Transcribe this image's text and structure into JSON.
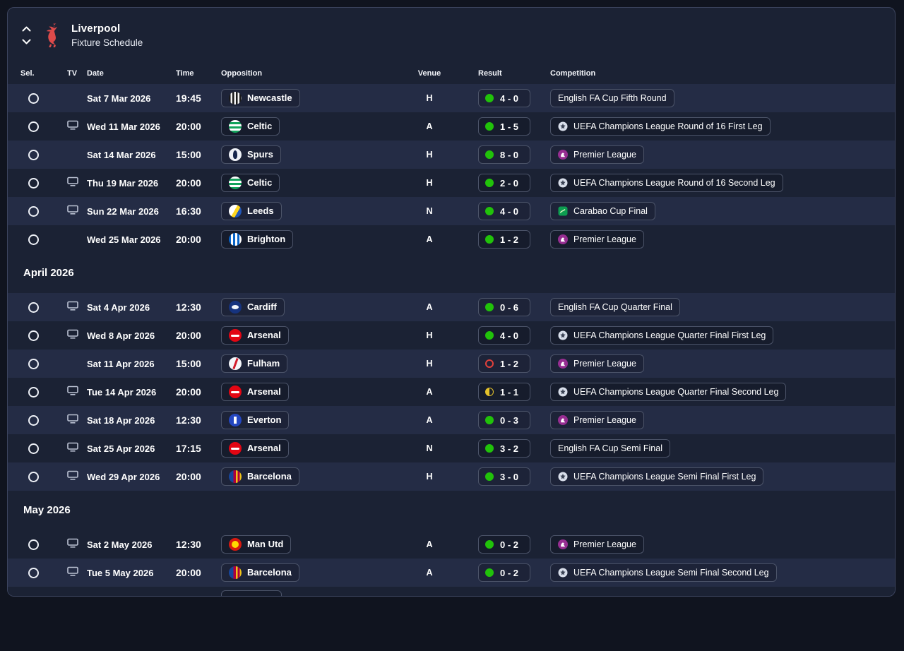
{
  "header": {
    "team_name": "Liverpool",
    "view_title": "Fixture Schedule"
  },
  "table": {
    "columns": {
      "sel": "Sel.",
      "tv": "TV",
      "date": "Date",
      "time": "Time",
      "opposition": "Opposition",
      "venue": "Venue",
      "result": "Result",
      "competition": "Competition"
    },
    "sections": [
      {
        "title": "",
        "rows": [
          {
            "tv": false,
            "date": "Sat 7 Mar 2026",
            "time": "19:45",
            "opposition": "Newcastle",
            "badge": "newcastle",
            "venue": "H",
            "result": "4 - 0",
            "outcome": "win",
            "competition": "English FA Cup Fifth Round",
            "comp_icon": "none"
          },
          {
            "tv": true,
            "date": "Wed 11 Mar 2026",
            "time": "20:00",
            "opposition": "Celtic",
            "badge": "celtic",
            "venue": "A",
            "result": "1 - 5",
            "outcome": "win",
            "competition": "UEFA Champions League Round of 16 First Leg",
            "comp_icon": "ucl"
          },
          {
            "tv": false,
            "date": "Sat 14 Mar 2026",
            "time": "15:00",
            "opposition": "Spurs",
            "badge": "spurs",
            "venue": "H",
            "result": "8 - 0",
            "outcome": "win",
            "competition": "Premier League",
            "comp_icon": "premier"
          },
          {
            "tv": true,
            "date": "Thu 19 Mar 2026",
            "time": "20:00",
            "opposition": "Celtic",
            "badge": "celtic",
            "venue": "H",
            "result": "2 - 0",
            "outcome": "win",
            "competition": "UEFA Champions League Round of 16 Second Leg",
            "comp_icon": "ucl"
          },
          {
            "tv": true,
            "date": "Sun 22 Mar 2026",
            "time": "16:30",
            "opposition": "Leeds",
            "badge": "leeds",
            "venue": "N",
            "result": "4 - 0",
            "outcome": "win",
            "competition": "Carabao Cup Final",
            "comp_icon": "carabao"
          },
          {
            "tv": false,
            "date": "Wed 25 Mar 2026",
            "time": "20:00",
            "opposition": "Brighton",
            "badge": "brighton",
            "venue": "A",
            "result": "1 - 2",
            "outcome": "win",
            "competition": "Premier League",
            "comp_icon": "premier"
          }
        ]
      },
      {
        "title": "April 2026",
        "rows": [
          {
            "tv": true,
            "date": "Sat 4 Apr 2026",
            "time": "12:30",
            "opposition": "Cardiff",
            "badge": "cardiff",
            "venue": "A",
            "result": "0 - 6",
            "outcome": "win",
            "competition": "English FA Cup Quarter Final",
            "comp_icon": "none"
          },
          {
            "tv": true,
            "date": "Wed 8 Apr 2026",
            "time": "20:00",
            "opposition": "Arsenal",
            "badge": "arsenal",
            "venue": "H",
            "result": "4 - 0",
            "outcome": "win",
            "competition": "UEFA Champions League Quarter Final First Leg",
            "comp_icon": "ucl"
          },
          {
            "tv": false,
            "date": "Sat 11 Apr 2026",
            "time": "15:00",
            "opposition": "Fulham",
            "badge": "fulham",
            "venue": "H",
            "result": "1 - 2",
            "outcome": "loss",
            "competition": "Premier League",
            "comp_icon": "premier"
          },
          {
            "tv": true,
            "date": "Tue 14 Apr 2026",
            "time": "20:00",
            "opposition": "Arsenal",
            "badge": "arsenal",
            "venue": "A",
            "result": "1 - 1",
            "outcome": "draw",
            "competition": "UEFA Champions League Quarter Final Second Leg",
            "comp_icon": "ucl"
          },
          {
            "tv": true,
            "date": "Sat 18 Apr 2026",
            "time": "12:30",
            "opposition": "Everton",
            "badge": "everton",
            "venue": "A",
            "result": "0 - 3",
            "outcome": "win",
            "competition": "Premier League",
            "comp_icon": "premier"
          },
          {
            "tv": true,
            "date": "Sat 25 Apr 2026",
            "time": "17:15",
            "opposition": "Arsenal",
            "badge": "arsenal",
            "venue": "N",
            "result": "3 - 2",
            "outcome": "win",
            "competition": "English FA Cup Semi Final",
            "comp_icon": "none"
          },
          {
            "tv": true,
            "date": "Wed 29 Apr 2026",
            "time": "20:00",
            "opposition": "Barcelona",
            "badge": "barcelona",
            "venue": "H",
            "result": "3 - 0",
            "outcome": "win",
            "competition": "UEFA Champions League Semi Final First Leg",
            "comp_icon": "ucl"
          }
        ]
      },
      {
        "title": "May 2026",
        "rows": [
          {
            "tv": true,
            "date": "Sat 2 May 2026",
            "time": "12:30",
            "opposition": "Man Utd",
            "badge": "manutd",
            "venue": "A",
            "result": "0 - 2",
            "outcome": "win",
            "competition": "Premier League",
            "comp_icon": "premier"
          },
          {
            "tv": true,
            "date": "Tue 5 May 2026",
            "time": "20:00",
            "opposition": "Barcelona",
            "badge": "barcelona",
            "venue": "A",
            "result": "0 - 2",
            "outcome": "win",
            "competition": "UEFA Champions League Semi Final Second Leg",
            "comp_icon": "ucl"
          }
        ]
      }
    ]
  },
  "status_colors": {
    "win": "#21c20a",
    "loss": "#e2413b",
    "draw": "#e5c22a"
  },
  "theme": {
    "crest_red": "#dc4a4a",
    "premier_league_purple": "#962d91",
    "carabao_green": "#0d9d50",
    "panel_bg": "#1b2234",
    "row_alt_bg": "#242c45"
  }
}
